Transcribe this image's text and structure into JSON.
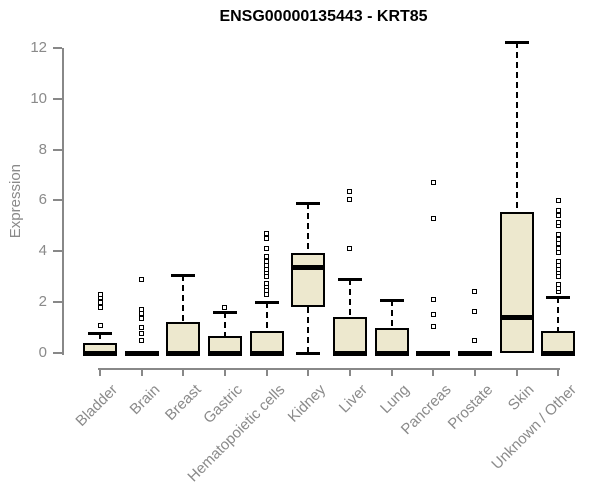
{
  "chart_data": {
    "type": "boxplot",
    "title": "ENSG00000135443 - KRT85",
    "ylabel": "Expression",
    "xlabel": "",
    "ylim": [
      0,
      12.4
    ],
    "yticks": [
      0,
      2,
      4,
      6,
      8,
      10,
      12
    ],
    "grid": false,
    "legend": "none",
    "categories": [
      "Bladder",
      "Brain",
      "Breast",
      "Gastric",
      "Hematopoietic cells",
      "Kidney",
      "Liver",
      "Lung",
      "Pancreas",
      "Prostate",
      "Skin",
      "Unknown / Other"
    ],
    "series": [
      {
        "category": "Bladder",
        "low": 0,
        "q1": 0,
        "median": 0,
        "q3": 0.4,
        "high": 0.8,
        "outliers": [
          1.1,
          1.8,
          2.0,
          2.2,
          2.3
        ]
      },
      {
        "category": "Brain",
        "low": 0,
        "q1": 0,
        "median": 0,
        "q3": 0.08,
        "high": 0.08,
        "outliers": [
          0.5,
          0.75,
          1.0,
          1.35,
          1.55,
          1.7,
          2.9
        ]
      },
      {
        "category": "Breast",
        "low": 0,
        "q1": 0,
        "median": 0,
        "q3": 1.2,
        "high": 3.05,
        "outliers": []
      },
      {
        "category": "Gastric",
        "low": 0,
        "q1": 0,
        "median": 0,
        "q3": 0.65,
        "high": 1.6,
        "outliers": [
          1.8
        ]
      },
      {
        "category": "Hematopoietic cells",
        "low": 0,
        "q1": 0,
        "median": 0,
        "q3": 0.85,
        "high": 2.0,
        "outliers": [
          2.3,
          2.45,
          2.6,
          2.75,
          3.0,
          3.15,
          3.3,
          3.45,
          3.6,
          3.8,
          4.1,
          4.5,
          4.7
        ]
      },
      {
        "category": "Kidney",
        "low": 0,
        "q1": 1.8,
        "median": 3.35,
        "q3": 3.95,
        "high": 5.9,
        "outliers": []
      },
      {
        "category": "Liver",
        "low": 0,
        "q1": 0,
        "median": 0,
        "q3": 1.4,
        "high": 2.9,
        "outliers": [
          4.1,
          6.05,
          6.35
        ]
      },
      {
        "category": "Lung",
        "low": 0,
        "q1": 0,
        "median": 0,
        "q3": 1.0,
        "high": 2.1,
        "outliers": []
      },
      {
        "category": "Pancreas",
        "low": 0,
        "q1": 0,
        "median": 0,
        "q3": 0.08,
        "high": 0.08,
        "outliers": [
          1.05,
          1.5,
          2.1,
          5.3,
          6.7
        ]
      },
      {
        "category": "Prostate",
        "low": 0,
        "q1": 0,
        "median": 0,
        "q3": 0.08,
        "high": 0.08,
        "outliers": [
          0.5,
          1.65,
          2.4
        ]
      },
      {
        "category": "Skin",
        "low": 0,
        "q1": 0,
        "median": 1.4,
        "q3": 5.55,
        "high": 12.25,
        "outliers": []
      },
      {
        "category": "Unknown / Other",
        "low": 0,
        "q1": 0,
        "median": 0,
        "q3": 0.85,
        "high": 2.2,
        "outliers": [
          2.4,
          2.55,
          2.7,
          3.0,
          3.15,
          3.3,
          3.45,
          3.6,
          3.95,
          4.1,
          4.3,
          4.45,
          4.65,
          5.0,
          5.15,
          5.4,
          5.6,
          6.0
        ]
      }
    ],
    "colors": {
      "box_fill": "#ede8ce",
      "box_border": "#000000",
      "whisker": "#000000",
      "axis": "#888888",
      "tick_text": "#8a8a8a",
      "title_text": "#000000",
      "background": "#ffffff"
    }
  }
}
